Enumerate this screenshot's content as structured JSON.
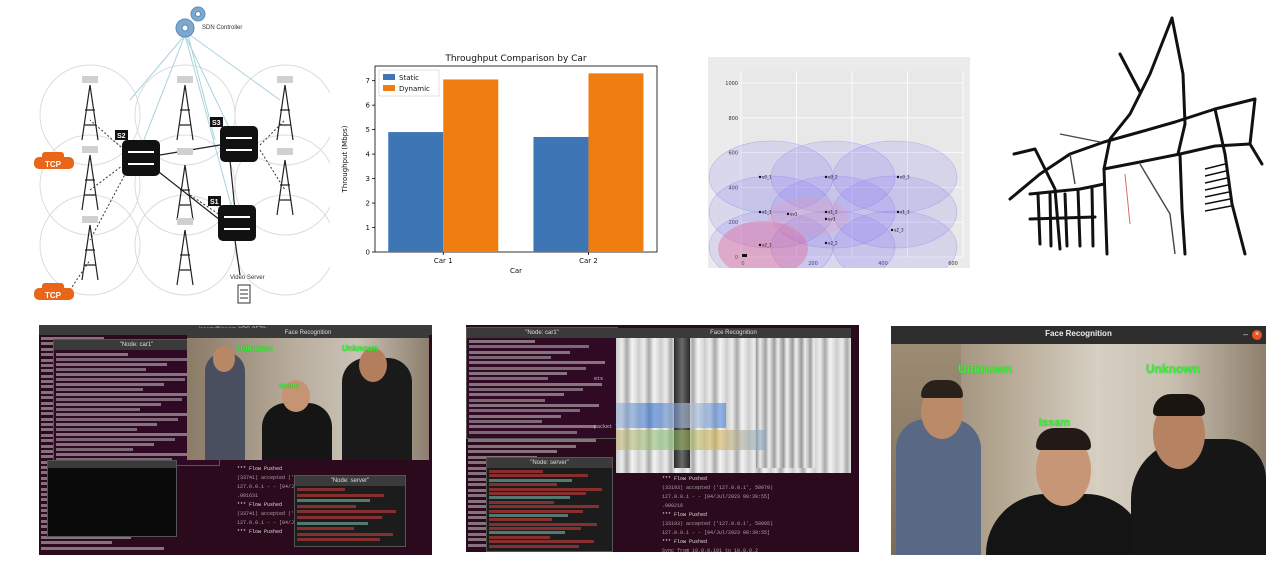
{
  "network": {
    "controller_label": "SDN Controller",
    "switches": [
      "S2",
      "S3",
      "S1"
    ],
    "car_label": "TCP",
    "server_label": "Video Server"
  },
  "chart_data": {
    "type": "bar",
    "title": "Throughput Comparison by Car",
    "xlabel": "Car",
    "ylabel": "Throughput (Mbps)",
    "categories": [
      "Car 1",
      "Car 2"
    ],
    "series": [
      {
        "name": "Static",
        "values": [
          4.9,
          4.7
        ],
        "color": "#3d75b5"
      },
      {
        "name": "Dynamic",
        "values": [
          7.05,
          7.3
        ],
        "color": "#f07d10"
      }
    ],
    "ylim": [
      0,
      7.6
    ],
    "yticks": [
      0,
      1,
      2,
      3,
      4,
      5,
      6,
      7
    ],
    "legend": "top-left",
    "grid": false
  },
  "coverage": {
    "yticks": [
      "1000",
      "800",
      "600",
      "400",
      "200",
      "0"
    ],
    "xticks": [
      "0",
      "200",
      "400",
      "600"
    ],
    "nodes": [
      "e0_1",
      "e0_2",
      "e0_3",
      "e1_1",
      "e1_2",
      "e1_3",
      "e2_1",
      "e2_2",
      "e2_3",
      "ev1",
      "ev3"
    ]
  },
  "terminals": {
    "left": {
      "main_title": "issam@issam-XPS-9570: ~",
      "node_title": "\"Node: car1\"",
      "face_title": "Face Recognition",
      "server_title": "\"Node: server\"",
      "labels": [
        "Unknown",
        "Unknown",
        "Issam"
      ],
      "flow_text": [
        "*** Flow Pushed",
        "*** Flow Pushed",
        "*** Flow Pushed"
      ]
    },
    "middle": {
      "node_title": "\"Node: car1\"",
      "face_title": "Face Recognition",
      "server_title": "\"Node: server\"",
      "flow_text": [
        "*** Flow Pushed",
        "*** Flow Pushed",
        "*** Flow Pushed"
      ],
      "partial_text": [
        "packet loss,",
        "ets"
      ]
    },
    "right": {
      "title": "Face Recognition",
      "labels": [
        "Unknown",
        "Unknown",
        "Issam"
      ]
    }
  }
}
